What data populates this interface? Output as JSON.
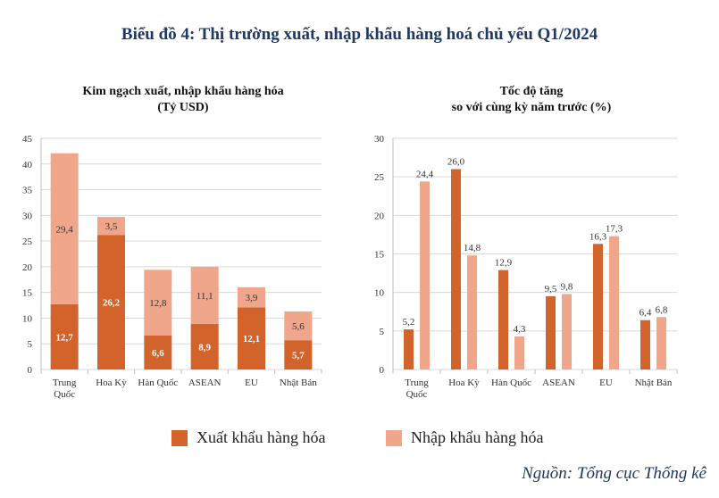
{
  "title": "Biểu đồ 4: Thị trường xuất, nhập khẩu hàng hoá chủ yếu Q1/2024",
  "left_subtitle": [
    "Kim ngạch xuất, nhập khẩu hàng hóa",
    "(Tỷ USD)"
  ],
  "right_subtitle": [
    "Tốc độ tăng",
    "so với cùng kỳ năm trước (%)"
  ],
  "legend": {
    "export_label": "Xuất khẩu hàng hóa",
    "import_label": "Nhập khẩu hàng hóa"
  },
  "source": "Nguồn: Tổng cục Thống kê",
  "colors": {
    "export": "#d2632a",
    "import": "#f0a68a",
    "grid": "#d9d9d9",
    "axis": "#bfbfbf",
    "tick": "#333333"
  },
  "chart_data": [
    {
      "type": "bar",
      "stacked": true,
      "categories": [
        [
          "Trung",
          "Quốc"
        ],
        [
          "Hoa Kỳ"
        ],
        [
          "Hàn Quốc"
        ],
        [
          "ASEAN"
        ],
        [
          "EU"
        ],
        [
          "Nhật Bản"
        ]
      ],
      "series": [
        {
          "name": "Xuất khẩu hàng hóa",
          "values": [
            12.7,
            26.2,
            6.6,
            8.9,
            12.1,
            5.7
          ],
          "labels": [
            "12,7",
            "26,2",
            "6,6",
            "8,9",
            "12,1",
            "5,7"
          ]
        },
        {
          "name": "Nhập khẩu hàng hóa",
          "values": [
            29.4,
            3.5,
            12.8,
            11.1,
            3.9,
            5.6
          ],
          "labels": [
            "29,4",
            "3,5",
            "12,8",
            "11,1",
            "3,9",
            "5,6"
          ]
        }
      ],
      "ylim": [
        0,
        45
      ],
      "yticks": [
        0,
        5,
        10,
        15,
        20,
        25,
        30,
        35,
        40,
        45
      ],
      "grid": true
    },
    {
      "type": "bar",
      "stacked": false,
      "categories": [
        [
          "Trung",
          "Quốc"
        ],
        [
          "Hoa Kỳ"
        ],
        [
          "Hàn Quốc"
        ],
        [
          "ASEAN"
        ],
        [
          "EU"
        ],
        [
          "Nhật Bản"
        ]
      ],
      "series": [
        {
          "name": "Xuất khẩu hàng hóa",
          "values": [
            5.2,
            26.0,
            12.9,
            9.5,
            16.3,
            6.4
          ],
          "labels": [
            "5,2",
            "26,0",
            "12,9",
            "9,5",
            "16,3",
            "6,4"
          ]
        },
        {
          "name": "Nhập khẩu hàng hóa",
          "values": [
            24.4,
            14.8,
            4.3,
            9.8,
            17.3,
            6.8
          ],
          "labels": [
            "24,4",
            "14,8",
            "4,3",
            "9,8",
            "17,3",
            "6,8"
          ]
        }
      ],
      "ylim": [
        0,
        30
      ],
      "yticks": [
        0,
        5,
        10,
        15,
        20,
        25,
        30
      ],
      "grid": true
    }
  ]
}
